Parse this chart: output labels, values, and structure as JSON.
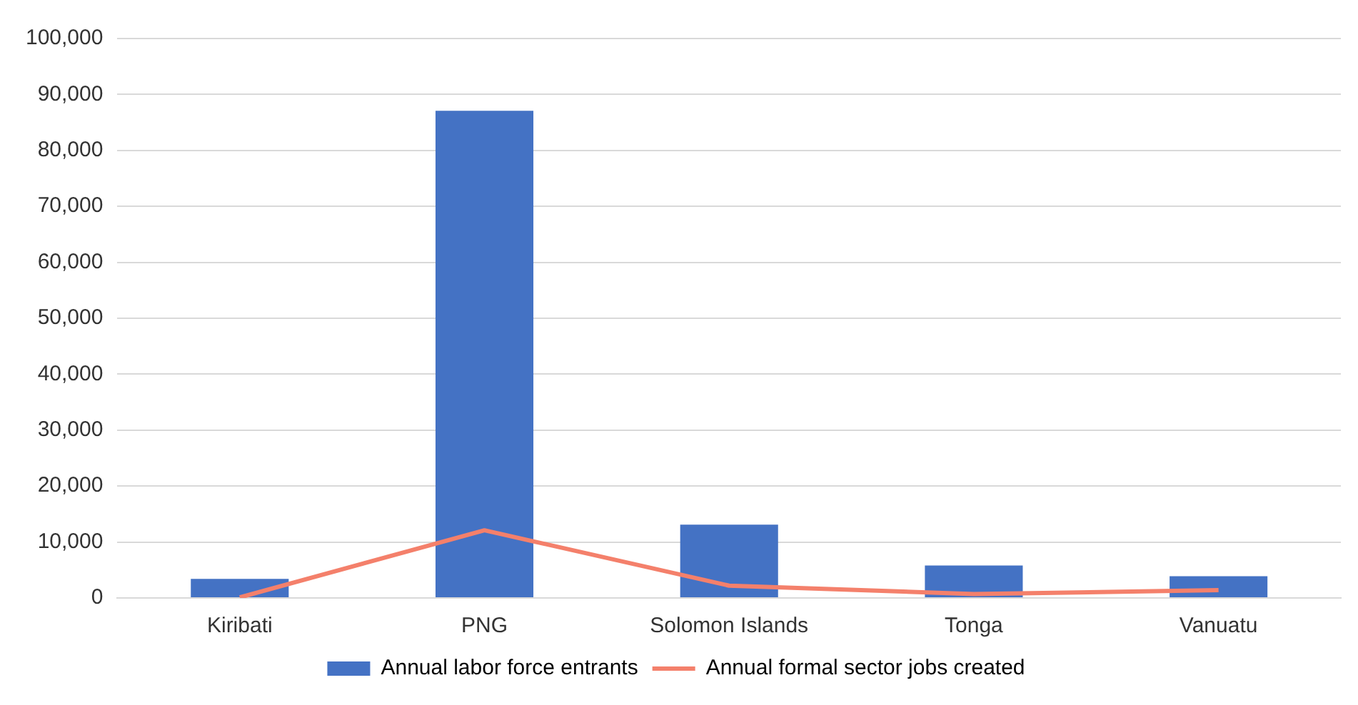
{
  "chart_data": {
    "type": "bar",
    "categories": [
      "Kiribati",
      "PNG",
      "Solomon Islands",
      "Tonga",
      "Vanuatu"
    ],
    "series": [
      {
        "name": "Annual labor force entrants",
        "color": "#4472c4",
        "values": [
          3400,
          87100,
          13100,
          5800,
          3900
        ]
      },
      {
        "name": "Annual formal sector jobs created",
        "type": "line",
        "color": "#f4806b",
        "values": [
          100,
          12100,
          2200,
          700,
          1400
        ]
      }
    ],
    "ylim": [
      0,
      100000
    ],
    "yticks": [
      0,
      {
        "value": 10000,
        "label": "10,000"
      },
      {
        "value": 20000,
        "label": "20,000"
      },
      {
        "value": 30000,
        "label": "30,000"
      },
      {
        "value": 40000,
        "label": "40,000"
      },
      {
        "value": 50000,
        "label": "50,000"
      },
      {
        "value": 60000,
        "label": "60,000"
      },
      {
        "value": 70000,
        "label": "70,000"
      },
      {
        "value": 80000,
        "label": "80,000"
      },
      {
        "value": 90000,
        "label": "90,000"
      },
      {
        "value": 100000,
        "label": "100,000"
      }
    ],
    "grid": "y",
    "legend": "bottom",
    "marker": "none"
  }
}
